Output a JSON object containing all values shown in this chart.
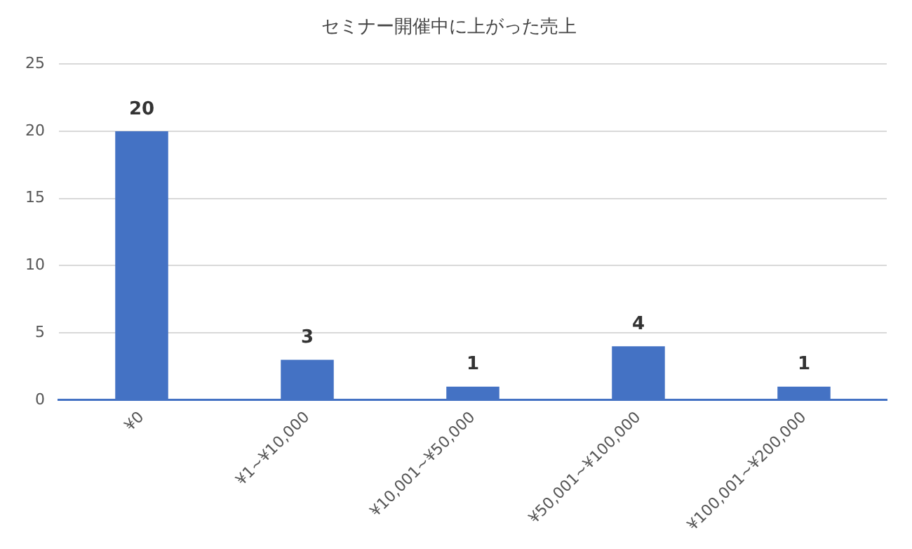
{
  "chart_data": {
    "type": "bar",
    "title": "セミナー開催中に上がった売上",
    "categories": [
      "¥0",
      "¥1~¥10,000",
      "¥10,001~¥50,000",
      "¥50,001~¥100,000",
      "¥100,001~¥200,000"
    ],
    "values": [
      20,
      3,
      1,
      4,
      1
    ],
    "color": "#4472c4",
    "ylim": [
      0,
      25
    ],
    "yticks": [
      0,
      5,
      10,
      15,
      20,
      25
    ],
    "grid": "y",
    "data_labels": true,
    "legend": false
  }
}
